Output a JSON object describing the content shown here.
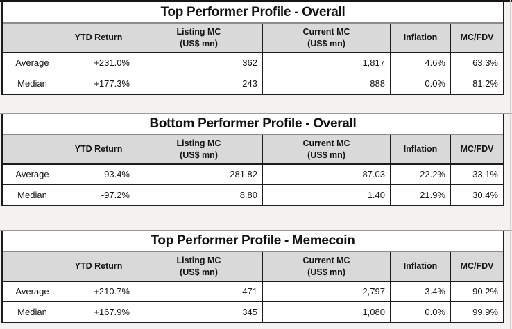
{
  "colors": {
    "page_background": "#f3f2f0",
    "header_background": "#d9d9d9",
    "border_dark": "#1c1c1c",
    "title_divider": "#8c8c8c",
    "gridline": "#9b9b9b"
  },
  "tables": [
    {
      "title": "Top Performer Profile - Overall",
      "headers": {
        "row_label": "",
        "ytd": "YTD Return",
        "listing_line1": "Listing MC",
        "listing_line2": "(US$ mn)",
        "current_line1": "Current MC",
        "current_line2": "(US$ mn)",
        "inflation": "Inflation",
        "mcfdv": "MC/FDV"
      },
      "rows": [
        {
          "label": "Average",
          "ytd": "+231.0%",
          "listing": "362",
          "current": "1,817",
          "inflation": "4.6%",
          "mcfdv": "63.3%"
        },
        {
          "label": "Median",
          "ytd": "+177.3%",
          "listing": "243",
          "current": "888",
          "inflation": "0.0%",
          "mcfdv": "81.2%"
        }
      ]
    },
    {
      "title": "Bottom Performer Profile - Overall",
      "headers": {
        "row_label": "",
        "ytd": "YTD Return",
        "listing_line1": "Listing MC",
        "listing_line2": "(US$ mn)",
        "current_line1": "Current MC",
        "current_line2": "(US$ mn)",
        "inflation": "Inflation",
        "mcfdv": "MC/FDV"
      },
      "rows": [
        {
          "label": "Average",
          "ytd": "-93.4%",
          "listing": "281.82",
          "current": "87.03",
          "inflation": "22.2%",
          "mcfdv": "33.1%"
        },
        {
          "label": "Median",
          "ytd": "-97.2%",
          "listing": "8.80",
          "current": "1.40",
          "inflation": "21.9%",
          "mcfdv": "30.4%"
        }
      ]
    },
    {
      "title": "Top Performer Profile - Memecoin",
      "headers": {
        "row_label": "",
        "ytd": "YTD Return",
        "listing_line1": "Listing MC",
        "listing_line2": "(US$ mn)",
        "current_line1": "Current MC",
        "current_line2": "(US$ mn)",
        "inflation": "Inflation",
        "mcfdv": "MC/FDV"
      },
      "rows": [
        {
          "label": "Average",
          "ytd": "+210.7%",
          "listing": "471",
          "current": "2,797",
          "inflation": "3.4%",
          "mcfdv": "90.2%"
        },
        {
          "label": "Median",
          "ytd": "+167.9%",
          "listing": "345",
          "current": "1,080",
          "inflation": "0.0%",
          "mcfdv": "99.9%"
        }
      ]
    }
  ]
}
